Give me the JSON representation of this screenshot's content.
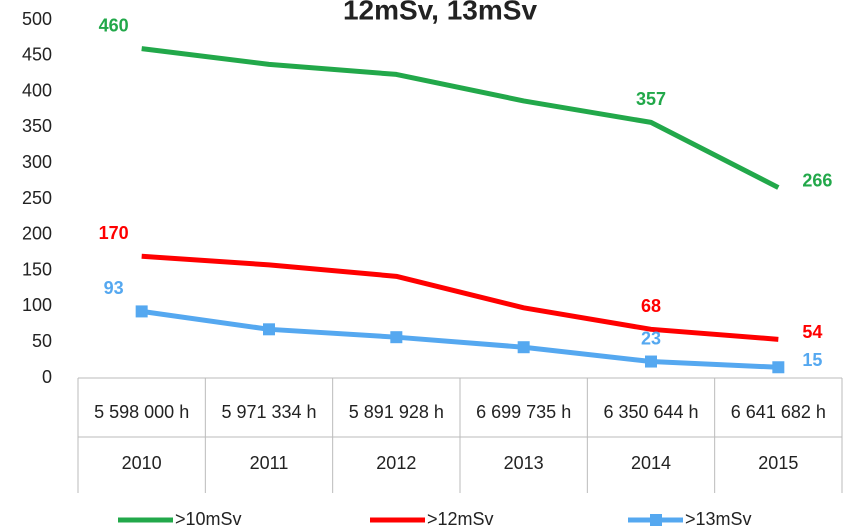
{
  "chart_data": {
    "type": "line",
    "title": "12mSv, 13mSv",
    "categories": [
      "2010",
      "2011",
      "2012",
      "2013",
      "2014",
      "2015"
    ],
    "category_sublabels": [
      "5 598 000 h",
      "5 971 334 h",
      "5 891 928 h",
      "6 699 735 h",
      "6 350 644 h",
      "6 641 682 h"
    ],
    "series": [
      {
        "name": ">10mSv",
        "color": "#22a84a",
        "values": [
          460,
          438,
          424,
          387,
          357,
          266
        ],
        "value_labels": [
          "460",
          null,
          null,
          null,
          "357",
          "266"
        ]
      },
      {
        "name": ">12mSv",
        "color": "#ff0000",
        "values": [
          170,
          158,
          142,
          98,
          68,
          54
        ],
        "value_labels": [
          "170",
          null,
          null,
          null,
          "68",
          "54"
        ]
      },
      {
        "name": ">13mSv",
        "color": "#55a8f0",
        "values": [
          93,
          68,
          57,
          43,
          23,
          15
        ],
        "value_labels": [
          "93",
          null,
          null,
          null,
          "23",
          "15"
        ],
        "marker": "square"
      }
    ],
    "ylim": [
      0,
      500
    ],
    "yticks": [
      0,
      50,
      100,
      150,
      200,
      250,
      300,
      350,
      400,
      450,
      500
    ],
    "grid": false,
    "legend": "bottom"
  }
}
